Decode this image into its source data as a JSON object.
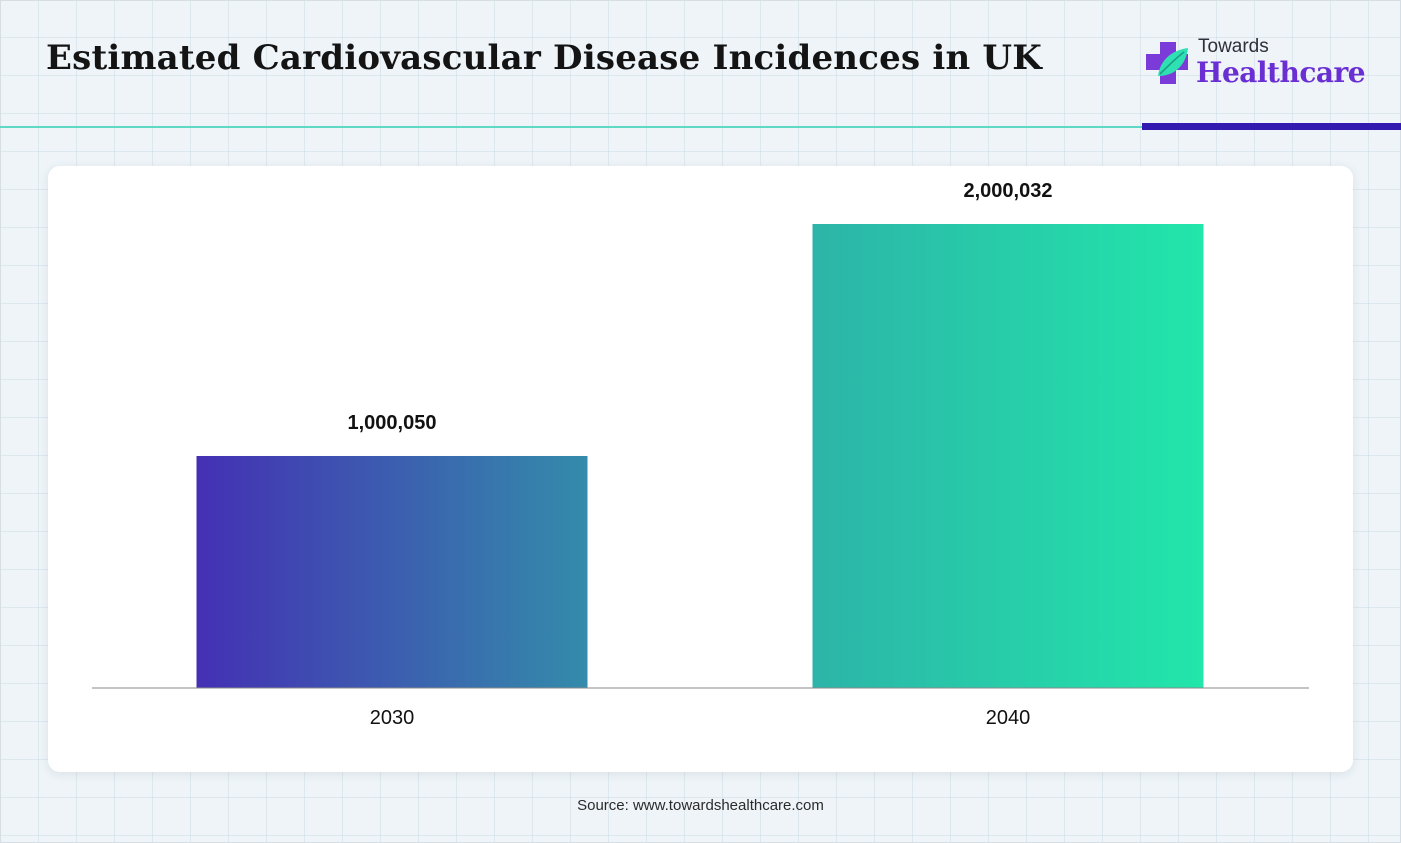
{
  "header": {
    "title": "Estimated Cardiovascular Disease Incidences in UK"
  },
  "logo": {
    "line1": "Towards",
    "line2": "Healthcare",
    "icon": "medical-cross-leaf-icon"
  },
  "colors": {
    "rule_teal": "#5fd8c4",
    "rule_purple": "#3219b0",
    "bar_gradient_start": "#4430b4",
    "bar_gradient_mid": "#2fa6a8",
    "bar_gradient_end": "#22e6aa",
    "brand_purple": "#6a2fd3"
  },
  "chart_data": {
    "type": "bar",
    "categories": [
      "2030",
      "2040"
    ],
    "values": [
      1000050,
      2000032
    ],
    "value_labels": [
      "1,000,050",
      "2,000,032"
    ],
    "ylim": [
      0,
      2250000
    ],
    "grid": false,
    "legend": "none"
  },
  "footer": {
    "source": "Source: www.towardshealthcare.com"
  }
}
